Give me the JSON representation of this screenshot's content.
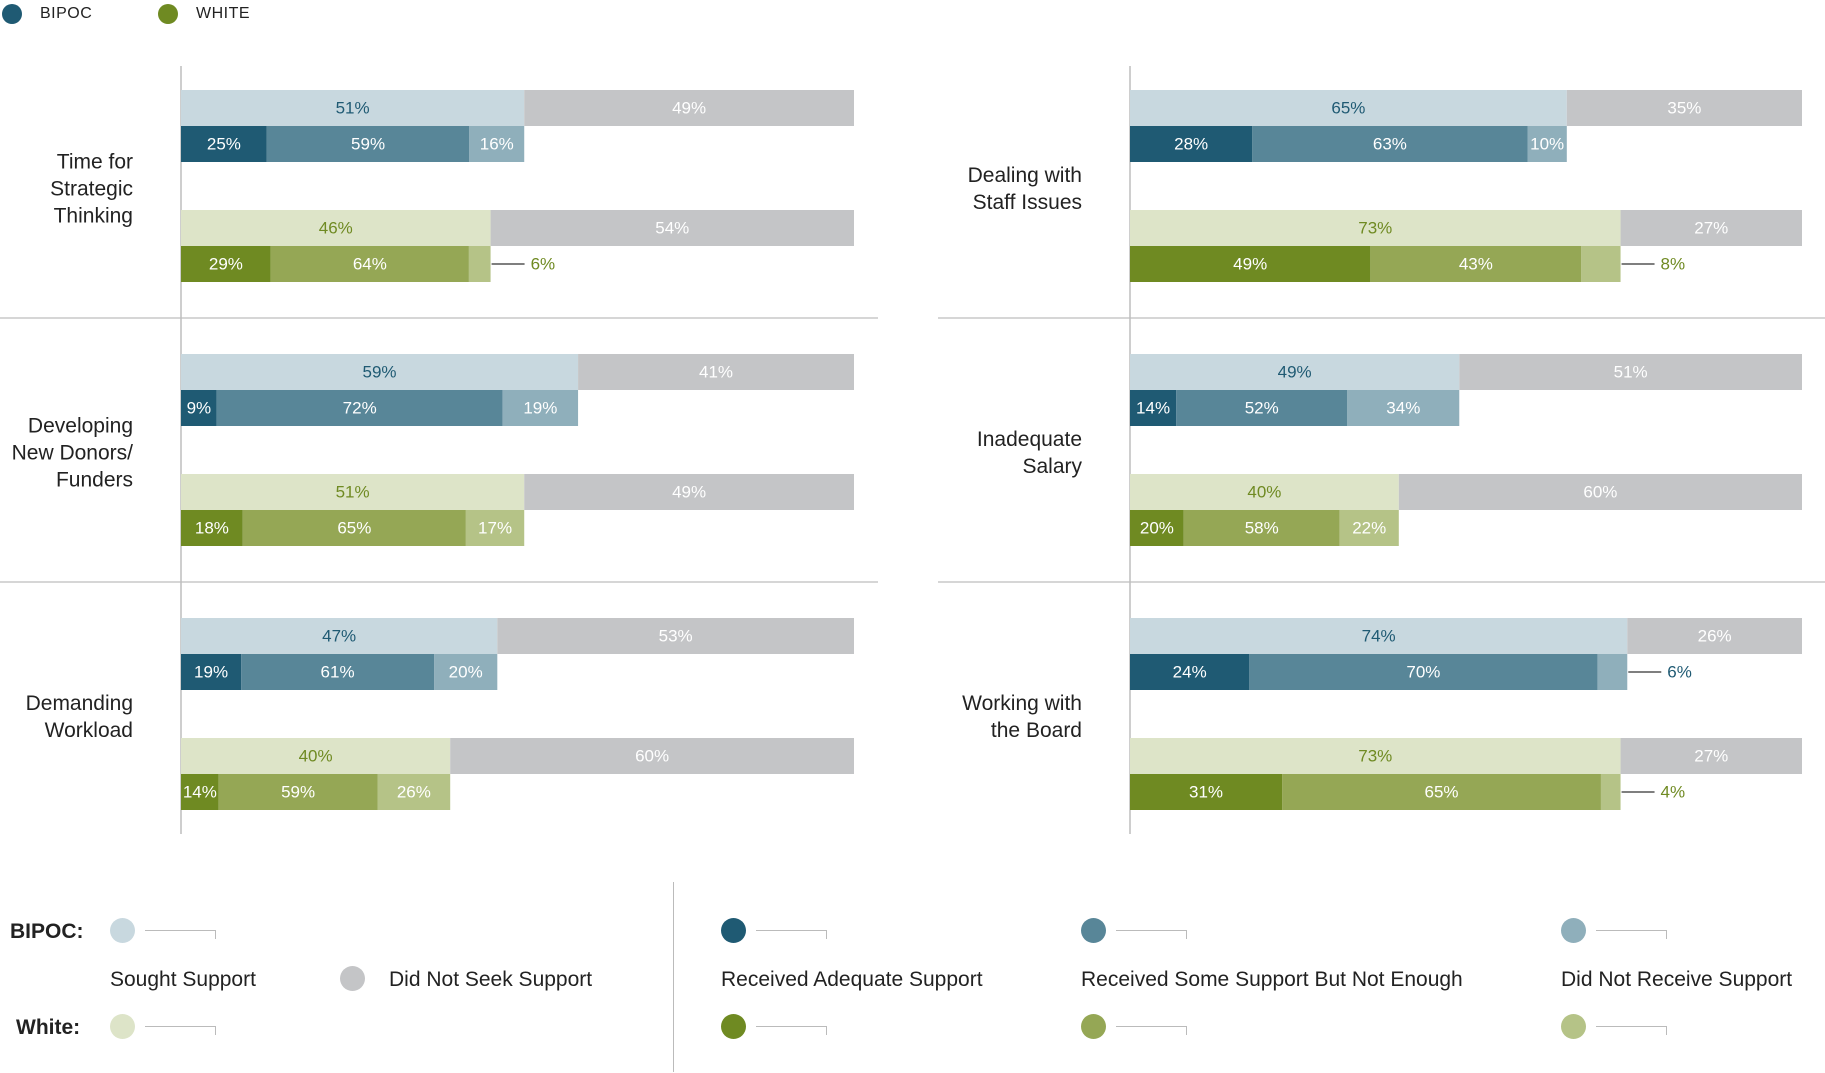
{
  "legend_top": [
    {
      "label": "BIPOC",
      "color": "#1f5a73"
    },
    {
      "label": "WHITE",
      "color": "#6f8a22"
    }
  ],
  "colors": {
    "bipoc_sought": "#c8d8df",
    "bipoc_adequate": "#1f5a73",
    "bipoc_some": "#588698",
    "bipoc_none": "#8fafbb",
    "white_sought": "#dde4c8",
    "white_adequate": "#6f8a22",
    "white_some": "#95a755",
    "white_none": "#b5c387",
    "not_seek": "#c4c5c7",
    "bipoc_text": "#1f5a73",
    "white_text": "#6f8a22"
  },
  "chart_data": {
    "type": "bar",
    "stacked": true,
    "orientation": "horizontal",
    "categories": [
      "Time for Strategic Thinking",
      "Dealing with Staff Issues",
      "Developing New Donors/ Funders",
      "Inadequate Salary",
      "Demanding Workload",
      "Working with the Board"
    ],
    "panels": [
      {
        "label_lines": [
          "Time for",
          "Strategic",
          "Thinking"
        ],
        "bipoc": {
          "sought": 51,
          "not_seek": 49,
          "adequate": 25,
          "some": 59,
          "none": 16
        },
        "white": {
          "sought": 46,
          "not_seek": 54,
          "adequate": 29,
          "some": 64,
          "none": 6,
          "none_outside": true
        }
      },
      {
        "label_lines": [
          "Dealing with",
          "Staff Issues"
        ],
        "bipoc": {
          "sought": 65,
          "not_seek": 35,
          "adequate": 28,
          "some": 63,
          "none": 10
        },
        "white": {
          "sought": 73,
          "not_seek": 27,
          "adequate": 49,
          "some": 43,
          "none": 8,
          "none_outside": true
        }
      },
      {
        "label_lines": [
          "Developing",
          "New Donors/",
          "Funders"
        ],
        "bipoc": {
          "sought": 59,
          "not_seek": 41,
          "adequate": 9,
          "some": 72,
          "none": 19
        },
        "white": {
          "sought": 51,
          "not_seek": 49,
          "adequate": 18,
          "some": 65,
          "none": 17
        }
      },
      {
        "label_lines": [
          "Inadequate",
          "Salary"
        ],
        "bipoc": {
          "sought": 49,
          "not_seek": 51,
          "adequate": 14,
          "some": 52,
          "none": 34
        },
        "white": {
          "sought": 40,
          "not_seek": 60,
          "adequate": 20,
          "some": 58,
          "none": 22
        }
      },
      {
        "label_lines": [
          "Demanding",
          "Workload"
        ],
        "bipoc": {
          "sought": 47,
          "not_seek": 53,
          "adequate": 19,
          "some": 61,
          "none": 20
        },
        "white": {
          "sought": 40,
          "not_seek": 60,
          "adequate": 14,
          "some": 59,
          "none": 26
        }
      },
      {
        "label_lines": [
          "Working with",
          "the Board"
        ],
        "bipoc": {
          "sought": 74,
          "not_seek": 26,
          "adequate": 24,
          "some": 70,
          "none": 6,
          "none_outside": true
        },
        "white": {
          "sought": 73,
          "not_seek": 27,
          "adequate": 31,
          "some": 65,
          "none": 4,
          "none_outside": true
        }
      }
    ],
    "xlim": [
      0,
      100
    ],
    "grid": false,
    "legend_position": "top-left and bottom"
  },
  "bottom_legend": {
    "bipoc_label": "BIPOC:",
    "white_label": "White:",
    "sought": "Sought Support",
    "not_seek": "Did Not Seek Support",
    "adequate": "Received Adequate Support",
    "some": "Received Some Support But Not Enough",
    "none": "Did Not Receive Support"
  }
}
